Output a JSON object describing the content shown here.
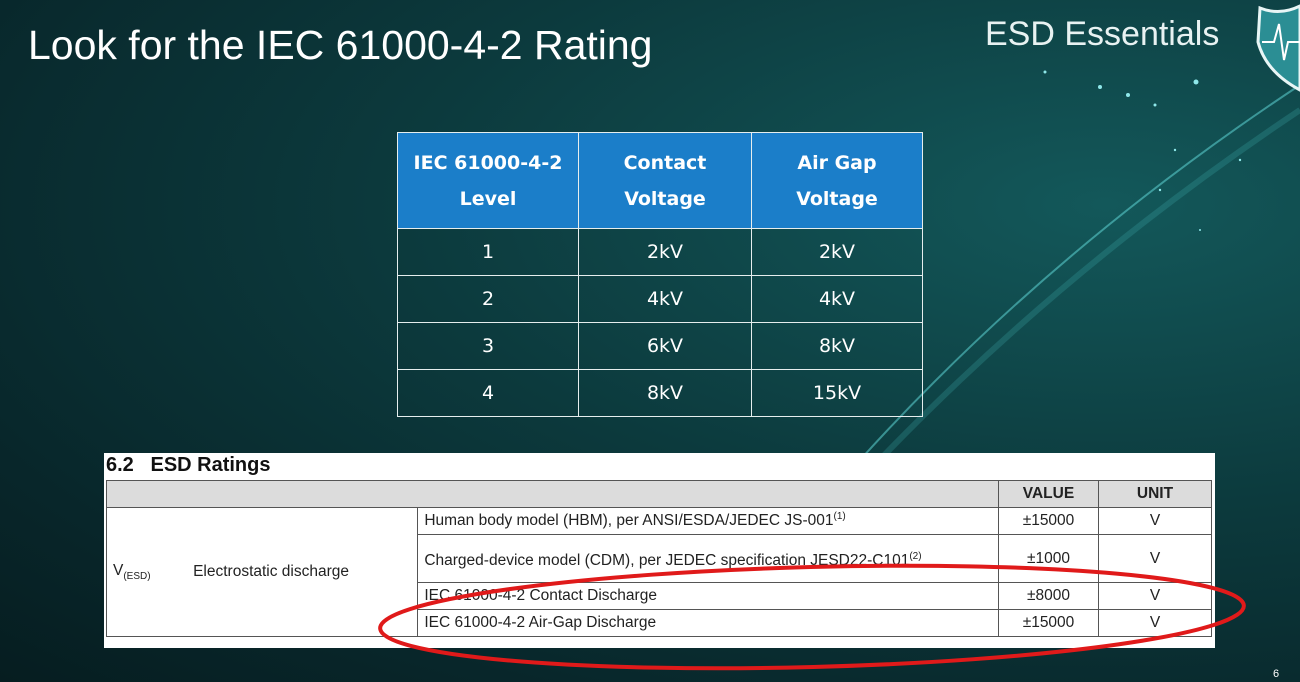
{
  "slide": {
    "title": "Look for the IEC 61000-4-2 Rating",
    "brand": "ESD Essentials",
    "page_number": "6",
    "logo_icon": "shield-heartbeat-icon",
    "header_color": "#1b7ec9",
    "highlight_color": "#e01a1a"
  },
  "iec_table": {
    "headers": [
      "IEC 61000-4-2 Level",
      "Contact Voltage",
      "Air Gap Voltage"
    ],
    "header_lines": [
      [
        "IEC 61000-4-2",
        "Level"
      ],
      [
        "Contact",
        "Voltage"
      ],
      [
        "Air Gap",
        "Voltage"
      ]
    ],
    "rows": [
      [
        "1",
        "2kV",
        "2kV"
      ],
      [
        "2",
        "4kV",
        "4kV"
      ],
      [
        "3",
        "6kV",
        "8kV"
      ],
      [
        "4",
        "8kV",
        "15kV"
      ]
    ]
  },
  "esd_ratings": {
    "section_title": "6.2   ESD Ratings",
    "col_value": "VALUE",
    "col_unit": "UNIT",
    "symbol": "V",
    "symbol_sub": "(ESD)",
    "parameter": "Electrostatic discharge",
    "rows": [
      {
        "condition": "Human body model (HBM), per ANSI/ESDA/JEDEC JS-001",
        "note": "(1)",
        "value": "±15000",
        "unit": "V"
      },
      {
        "condition": "Charged-device model (CDM), per JEDEC specification JESD22-C101",
        "note": "(2)",
        "value": "±1000",
        "unit": "V"
      },
      {
        "condition": "IEC 61000-4-2 Contact Discharge",
        "note": "",
        "value": "±8000",
        "unit": "V"
      },
      {
        "condition": "IEC 61000-4-2 Air-Gap Discharge",
        "note": "",
        "value": "±15000",
        "unit": "V"
      }
    ]
  }
}
